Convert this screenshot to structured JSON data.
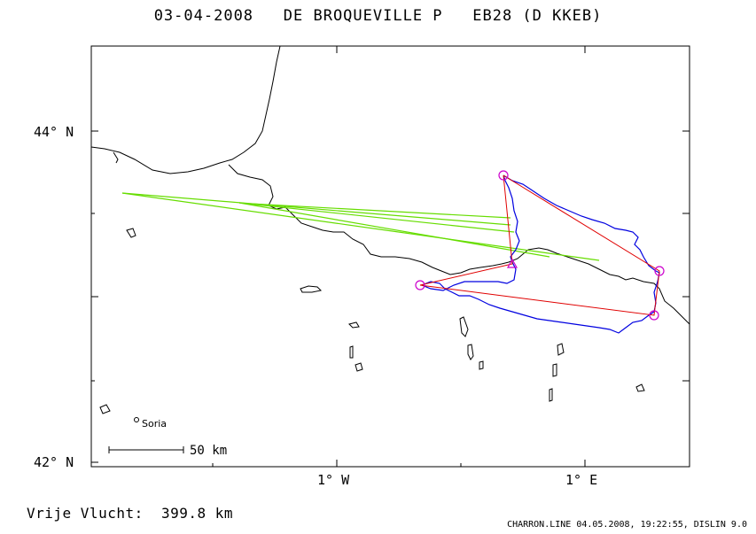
{
  "header": {
    "date": "03-04-2008",
    "pilot": "DE BROQUEVILLE P",
    "glider": "EB28 (D KKEB)"
  },
  "axes": {
    "lat_labels": [
      "44° N",
      "42° N"
    ],
    "lon_labels": [
      "1° W",
      "1° E"
    ]
  },
  "places": [
    {
      "name": "Soria"
    }
  ],
  "scale_bar": {
    "label": "50 km"
  },
  "flight": {
    "label": "Vrije Vlucht:",
    "distance": "399.8 km"
  },
  "footer": {
    "text": "CHARRON.LINE 04.05.2008, 19:22:55, DISLIN 9.0"
  },
  "colors": {
    "coastline": "#000000",
    "track": "#0000e0",
    "track_segment": "#66dd00",
    "task_legs": "#e00000",
    "turnpoints": "#cc00cc"
  }
}
